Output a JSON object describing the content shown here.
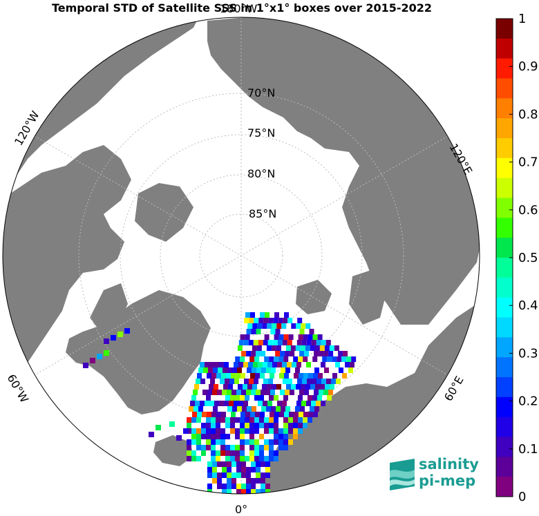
{
  "title": "Temporal STD of Satellite SSS in 1°x1° boxes over 2015-2022",
  "map": {
    "projection": "north-polar-stereographic",
    "land_color": "#808080",
    "ocean_color": "#ffffff",
    "grid_color": "#bbbbbb",
    "lat_labels": [
      "70°N",
      "75°N",
      "80°N",
      "85°N"
    ],
    "lon_labels": {
      "top": "180°W",
      "bottom": "0°",
      "upper_left": "120°W",
      "upper_right": "120°E",
      "lower_left": "60°W",
      "lower_right": "60°E"
    }
  },
  "colorbar": {
    "min": 0,
    "max": 1,
    "tick_labels": [
      "1",
      "0.9",
      "0.8",
      "0.7",
      "0.6",
      "0.5",
      "0.4",
      "0.3",
      "0.2",
      "0.1",
      "0"
    ],
    "colors": [
      "#7a0000",
      "#c00000",
      "#ff1a00",
      "#ff4d00",
      "#ff7f00",
      "#ffa600",
      "#ffcc00",
      "#ffff00",
      "#ccff00",
      "#80ff00",
      "#33ff00",
      "#00e64d",
      "#00ff99",
      "#00ffcc",
      "#00ffff",
      "#00d9ff",
      "#00a6ff",
      "#0073ff",
      "#0040ff",
      "#0000ff",
      "#2000e6",
      "#4000bf",
      "#5c0099",
      "#800080"
    ]
  },
  "logo": {
    "line1": "salinity",
    "line2": "pi-mep"
  }
}
